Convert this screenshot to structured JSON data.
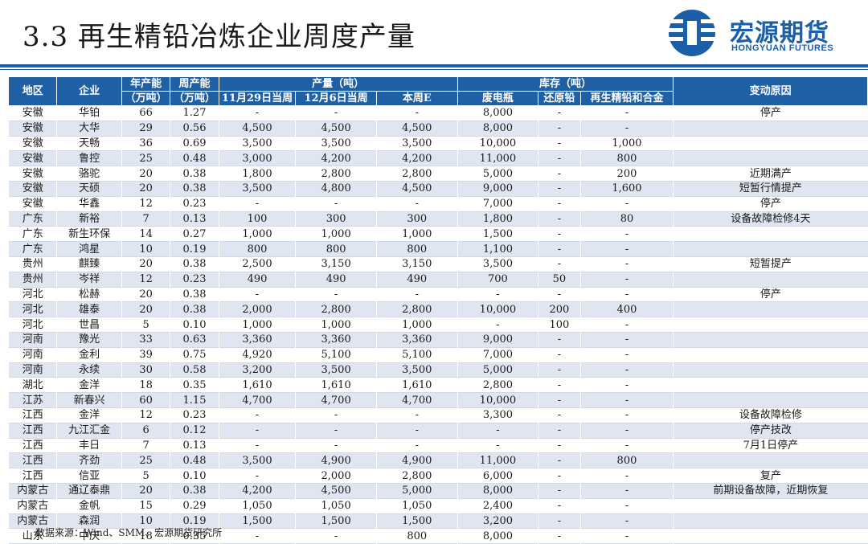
{
  "title": "3.3 再生精铅冶炼企业周度产量",
  "logo": {
    "cn": "宏源期货",
    "en": "HONGYUAN FUTURES"
  },
  "headers": {
    "region": "地区",
    "company": "企业",
    "annual_cap": "年产能",
    "annual_cap_unit": "（万吨）",
    "weekly_cap": "周产能",
    "weekly_cap_unit": "（万吨）",
    "output": "产量（吨）",
    "output_w1": "11月29日当周",
    "output_w2": "12月6日当周",
    "output_w3": "本周E",
    "inventory": "库存（吨）",
    "inv_scrap": "废电瓶",
    "inv_reduced": "还原铅",
    "inv_alloy": "再生精铅和合金",
    "reason": "变动原因"
  },
  "rows": [
    [
      "安徽",
      "华铂",
      "66",
      "1.27",
      "-",
      "-",
      "-",
      "8,000",
      "-",
      "-",
      "停产"
    ],
    [
      "安徽",
      "大华",
      "29",
      "0.56",
      "4,500",
      "4,500",
      "4,500",
      "8,000",
      "-",
      "-",
      ""
    ],
    [
      "安徽",
      "天畅",
      "36",
      "0.69",
      "3,500",
      "3,500",
      "3,500",
      "10,000",
      "-",
      "1,000",
      ""
    ],
    [
      "安徽",
      "鲁控",
      "25",
      "0.48",
      "3,000",
      "4,200",
      "4,200",
      "11,000",
      "-",
      "800",
      ""
    ],
    [
      "安徽",
      "骆驼",
      "20",
      "0.38",
      "1,800",
      "2,800",
      "2,800",
      "5,000",
      "-",
      "200",
      "近期满产"
    ],
    [
      "安徽",
      "天硕",
      "20",
      "0.38",
      "3,500",
      "4,800",
      "4,500",
      "9,000",
      "-",
      "1,600",
      "短暂行情提产"
    ],
    [
      "安徽",
      "华鑫",
      "12",
      "0.23",
      "-",
      "-",
      "-",
      "7,000",
      "-",
      "-",
      "停产"
    ],
    [
      "广东",
      "新裕",
      "7",
      "0.13",
      "100",
      "300",
      "300",
      "1,800",
      "-",
      "80",
      "设备故障检修4天"
    ],
    [
      "广东",
      "新生环保",
      "14",
      "0.27",
      "1,000",
      "1,000",
      "1,000",
      "1,500",
      "-",
      "-",
      ""
    ],
    [
      "广东",
      "鸿星",
      "10",
      "0.19",
      "800",
      "800",
      "800",
      "1,100",
      "-",
      "-",
      ""
    ],
    [
      "贵州",
      "麒臻",
      "20",
      "0.38",
      "2,500",
      "3,150",
      "3,150",
      "3,500",
      "-",
      "-",
      "短暂提产"
    ],
    [
      "贵州",
      "岑祥",
      "12",
      "0.23",
      "490",
      "490",
      "490",
      "700",
      "50",
      "-",
      ""
    ],
    [
      "河北",
      "松赫",
      "20",
      "0.38",
      "-",
      "-",
      "-",
      "-",
      "-",
      "-",
      "停产"
    ],
    [
      "河北",
      "雄泰",
      "20",
      "0.38",
      "2,000",
      "2,800",
      "2,800",
      "10,000",
      "200",
      "400",
      ""
    ],
    [
      "河北",
      "世昌",
      "5",
      "0.10",
      "1,000",
      "1,000",
      "1,000",
      "-",
      "100",
      "-",
      ""
    ],
    [
      "河南",
      "豫光",
      "33",
      "0.63",
      "3,360",
      "3,360",
      "3,360",
      "9,000",
      "-",
      "-",
      ""
    ],
    [
      "河南",
      "金利",
      "39",
      "0.75",
      "4,920",
      "5,100",
      "5,100",
      "7,000",
      "-",
      "-",
      ""
    ],
    [
      "河南",
      "永续",
      "30",
      "0.58",
      "3,200",
      "3,500",
      "3,500",
      "5,000",
      "-",
      "-",
      ""
    ],
    [
      "湖北",
      "金洋",
      "18",
      "0.35",
      "1,610",
      "1,610",
      "1,610",
      "2,800",
      "-",
      "-",
      ""
    ],
    [
      "江苏",
      "新春兴",
      "60",
      "1.15",
      "4,700",
      "4,700",
      "4,700",
      "10,000",
      "-",
      "-",
      ""
    ],
    [
      "江西",
      "金洋",
      "12",
      "0.23",
      "-",
      "-",
      "-",
      "3,300",
      "-",
      "-",
      "设备故障检修"
    ],
    [
      "江西",
      "九江汇金",
      "6",
      "0.12",
      "-",
      "-",
      "-",
      "-",
      "-",
      "-",
      "停产技改"
    ],
    [
      "江西",
      "丰日",
      "7",
      "0.13",
      "-",
      "-",
      "-",
      "-",
      "-",
      "-",
      "7月1日停产"
    ],
    [
      "江西",
      "齐劲",
      "25",
      "0.48",
      "3,500",
      "4,900",
      "4,900",
      "11,000",
      "-",
      "800",
      ""
    ],
    [
      "江西",
      "信亚",
      "5",
      "0.10",
      "-",
      "2,000",
      "2,800",
      "6,000",
      "-",
      "-",
      "复产"
    ],
    [
      "内蒙古",
      "通辽泰鼎",
      "20",
      "0.38",
      "4,200",
      "4,500",
      "5,000",
      "8,000",
      "-",
      "-",
      "前期设备故障，近期恢复"
    ],
    [
      "内蒙古",
      "金帆",
      "15",
      "0.29",
      "1,050",
      "1,050",
      "1,050",
      "2,400",
      "-",
      "-",
      ""
    ],
    [
      "内蒙古",
      "森润",
      "10",
      "0.19",
      "1,500",
      "1,500",
      "1,500",
      "3,200",
      "-",
      "-",
      ""
    ],
    [
      "山东",
      "中庆",
      "18",
      "0.35",
      "-",
      "-",
      "800",
      "8,000",
      "-",
      "-",
      ""
    ]
  ],
  "source": "数据来源：Wind、SMM、宏源期货研究所",
  "colors": {
    "header_bg": "#1f5fa3",
    "stripe": "#dfe6f1",
    "brand": "#1a5fa8"
  }
}
